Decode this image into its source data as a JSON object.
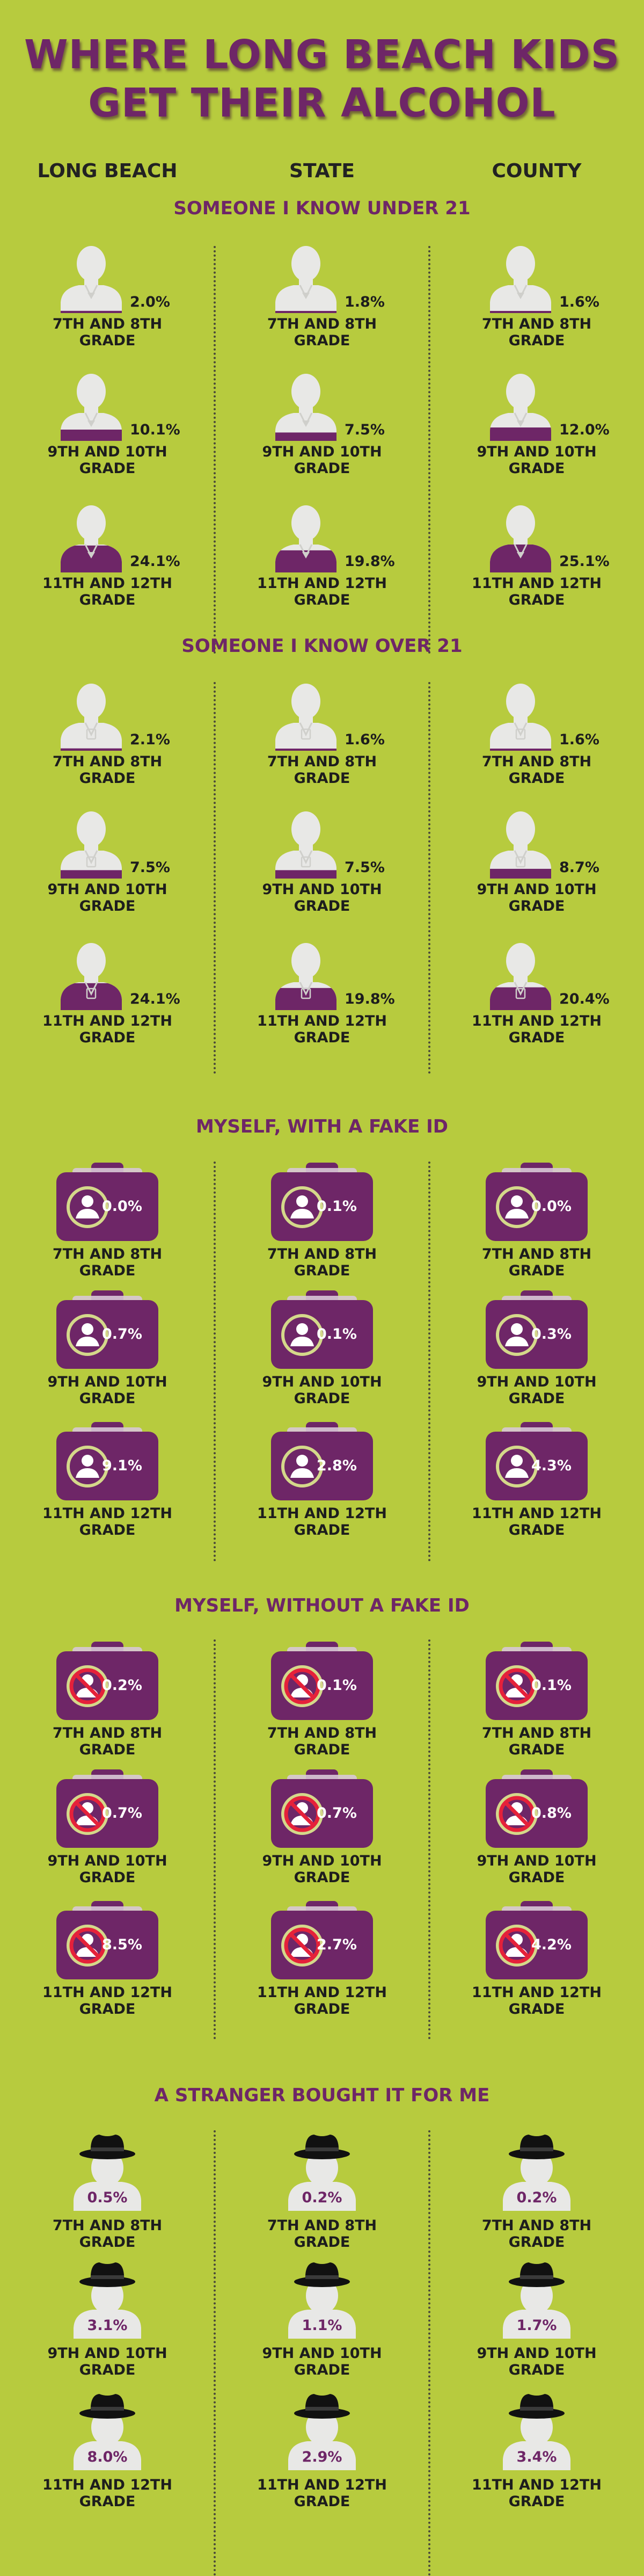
{
  "title_lines": [
    "WHERE LONG BEACH KIDS",
    "GET THEIR ALCOHOL"
  ],
  "columns": [
    "LONG BEACH",
    "STATE",
    "COUNTY"
  ],
  "colors": {
    "background": "#b7cb3e",
    "accent_purple": "#6e2667",
    "icon_gray": "#e8e8e6",
    "ring_yellow": "#d4d88a",
    "no_sign_red": "#e5213a",
    "hat_black": "#111111"
  },
  "grades": [
    [
      "7TH AND 8TH",
      "GRADE"
    ],
    [
      "9TH AND 10TH",
      "GRADE"
    ],
    [
      "11TH AND 12TH",
      "GRADE"
    ]
  ],
  "icons": {
    "person_under_21": "person-under-21-icon",
    "person_over_21": "person-over-21-icon",
    "fake_id": "id-card-icon",
    "no_fake_id": "no-id-card-icon",
    "stranger": "person-with-hat-icon"
  },
  "sections": [
    {
      "title": "SOMEONE I KNOW UNDER 21",
      "icon": "under21",
      "values": [
        [
          "2.0%",
          "1.8%",
          "1.6%"
        ],
        [
          "10.1%",
          "7.5%",
          "12.0%"
        ],
        [
          "24.1%",
          "19.8%",
          "25.1%"
        ]
      ]
    },
    {
      "title": "SOMEONE I KNOW OVER 21",
      "icon": "over21",
      "values": [
        [
          "2.1%",
          "1.6%",
          "1.6%"
        ],
        [
          "7.5%",
          "7.5%",
          "8.7%"
        ],
        [
          "24.1%",
          "19.8%",
          "20.4%"
        ]
      ]
    },
    {
      "title": "MYSELF, WITH A FAKE ID",
      "icon": "fakeid",
      "values": [
        [
          "0.0%",
          "0.1%",
          "0.0%"
        ],
        [
          "0.7%",
          "0.1%",
          "0.3%"
        ],
        [
          "9.1%",
          "2.8%",
          "4.3%"
        ]
      ]
    },
    {
      "title": "MYSELF, WITHOUT A FAKE ID",
      "icon": "nofakeid",
      "values": [
        [
          "0.2%",
          "0.1%",
          "0.1%"
        ],
        [
          "0.7%",
          "0.7%",
          "0.8%"
        ],
        [
          "8.5%",
          "2.7%",
          "4.2%"
        ]
      ]
    },
    {
      "title": "A STRANGER BOUGHT IT FOR ME",
      "icon": "stranger",
      "values": [
        [
          "0.5%",
          "0.2%",
          "0.2%"
        ],
        [
          "3.1%",
          "1.1%",
          "1.7%"
        ],
        [
          "8.0%",
          "2.9%",
          "3.4%"
        ]
      ]
    }
  ],
  "chart_data": {
    "type": "table",
    "title": "WHERE LONG BEACH KIDS GET THEIR ALCOHOL",
    "columns": [
      "LONG BEACH",
      "STATE",
      "COUNTY"
    ],
    "rows": [
      "7TH AND 8TH GRADE",
      "9TH AND 10TH GRADE",
      "11TH AND 12TH GRADE"
    ],
    "groups": [
      {
        "name": "SOMEONE I KNOW UNDER 21",
        "values": [
          [
            2.0,
            1.8,
            1.6
          ],
          [
            10.1,
            7.5,
            12.0
          ],
          [
            24.1,
            19.8,
            25.1
          ]
        ]
      },
      {
        "name": "SOMEONE I KNOW OVER 21",
        "values": [
          [
            2.1,
            1.6,
            1.6
          ],
          [
            7.5,
            7.5,
            8.7
          ],
          [
            24.1,
            19.8,
            20.4
          ]
        ]
      },
      {
        "name": "MYSELF, WITH A FAKE ID",
        "values": [
          [
            0.0,
            0.1,
            0.0
          ],
          [
            0.7,
            0.1,
            0.3
          ],
          [
            9.1,
            2.8,
            4.3
          ]
        ]
      },
      {
        "name": "MYSELF, WITHOUT A FAKE ID",
        "values": [
          [
            0.2,
            0.1,
            0.1
          ],
          [
            0.7,
            0.7,
            0.8
          ],
          [
            8.5,
            2.7,
            4.2
          ]
        ]
      },
      {
        "name": "A STRANGER BOUGHT IT FOR ME",
        "values": [
          [
            0.5,
            0.2,
            0.2
          ],
          [
            3.1,
            1.1,
            1.7
          ],
          [
            8.0,
            2.9,
            3.4
          ]
        ]
      }
    ],
    "unit": "%"
  }
}
